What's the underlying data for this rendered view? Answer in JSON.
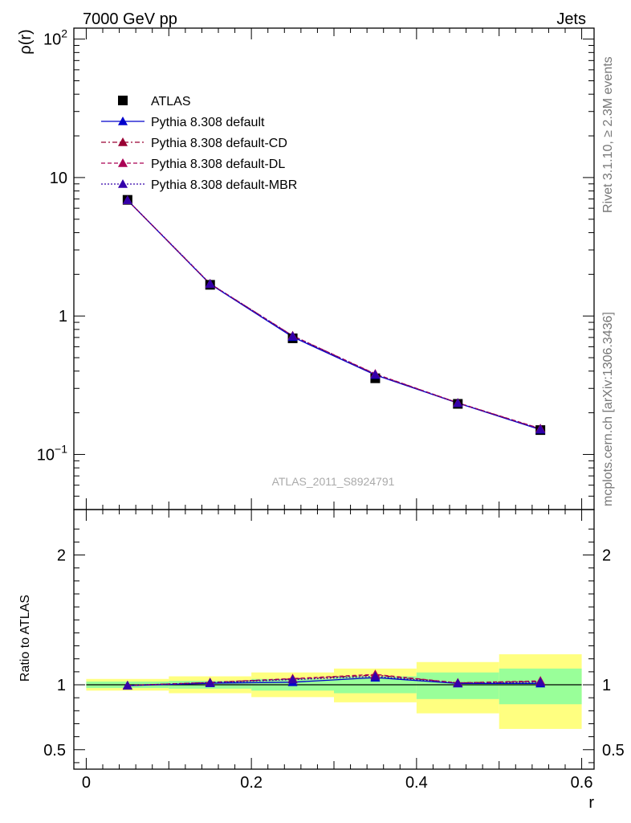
{
  "header": {
    "left": "7000 GeV pp",
    "right": "Jets"
  },
  "side_labels": {
    "rivet": "Rivet 3.1.10, ≥ 2.3M events",
    "mcplots": "mcplots.cern.ch [arXiv:1306.3436]"
  },
  "watermark": "ATLAS_2011_S8924791",
  "chart_data": [
    {
      "type": "scatter",
      "panel": "main",
      "ylabel": "ρ(r)",
      "xlabel": "",
      "yscale": "log",
      "xlim": [
        -0.015,
        0.615
      ],
      "ylim": [
        0.04,
        120
      ],
      "y_ticks": [
        {
          "value": 0.1,
          "base": "10",
          "exp": "−1"
        },
        {
          "value": 1,
          "base": "1",
          "exp": ""
        },
        {
          "value": 10,
          "base": "10",
          "exp": ""
        },
        {
          "value": 100,
          "base": "10",
          "exp": "2"
        }
      ],
      "legend_position": "top-left",
      "x": [
        0.05,
        0.15,
        0.25,
        0.35,
        0.45,
        0.55
      ],
      "series": [
        {
          "name": "ATLAS",
          "style": "data",
          "color": "#000000",
          "values": [
            6.9,
            1.68,
            0.69,
            0.355,
            0.232,
            0.15
          ]
        },
        {
          "name": "Pythia 8.308 default",
          "style": "solid",
          "color": "#0000cc",
          "values": [
            6.85,
            1.7,
            0.705,
            0.375,
            0.235,
            0.151
          ]
        },
        {
          "name": "Pythia 8.308 default-CD",
          "style": "dashdot",
          "color": "#990033",
          "values": [
            6.86,
            1.71,
            0.72,
            0.38,
            0.236,
            0.153
          ]
        },
        {
          "name": "Pythia 8.308 default-DL",
          "style": "dashed",
          "color": "#aa0055",
          "values": [
            6.86,
            1.71,
            0.72,
            0.382,
            0.236,
            0.154
          ]
        },
        {
          "name": "Pythia 8.308 default-MBR",
          "style": "dotted",
          "color": "#3300aa",
          "values": [
            6.86,
            1.71,
            0.715,
            0.378,
            0.235,
            0.152
          ]
        }
      ]
    },
    {
      "type": "scatter",
      "panel": "ratio",
      "ylabel": "Ratio to ATLAS",
      "xlabel": "r",
      "xlim": [
        -0.015,
        0.615
      ],
      "ylim": [
        0.35,
        2.35
      ],
      "x_ticks": [
        "0",
        "0.2",
        "0.4",
        "0.6"
      ],
      "x_tick_values": [
        0,
        0.2,
        0.4,
        0.6
      ],
      "y_ticks": [
        "0.5",
        "1",
        "2"
      ],
      "y_tick_values": [
        0.5,
        1,
        2
      ],
      "bins": [
        {
          "lo": 0.0,
          "hi": 0.1,
          "inner": [
            0.975,
            1.025
          ],
          "outer": [
            0.955,
            1.045
          ]
        },
        {
          "lo": 0.1,
          "hi": 0.2,
          "inner": [
            0.97,
            1.03
          ],
          "outer": [
            0.935,
            1.065
          ]
        },
        {
          "lo": 0.2,
          "hi": 0.3,
          "inner": [
            0.955,
            1.045
          ],
          "outer": [
            0.905,
            1.095
          ]
        },
        {
          "lo": 0.3,
          "hi": 0.4,
          "inner": [
            0.935,
            1.065
          ],
          "outer": [
            0.865,
            1.125
          ]
        },
        {
          "lo": 0.4,
          "hi": 0.5,
          "inner": [
            0.89,
            1.095
          ],
          "outer": [
            0.78,
            1.175
          ]
        },
        {
          "lo": 0.5,
          "hi": 0.6,
          "inner": [
            0.85,
            1.125
          ],
          "outer": [
            0.66,
            1.235
          ]
        }
      ],
      "x": [
        0.05,
        0.15,
        0.25,
        0.35,
        0.45,
        0.55
      ],
      "series": [
        {
          "name": "Pythia 8.308 default",
          "style": "solid",
          "color": "#0000cc",
          "values": [
            0.993,
            1.012,
            1.02,
            1.055,
            1.01,
            1.01
          ]
        },
        {
          "name": "Pythia 8.308 default-CD",
          "style": "dashdot",
          "color": "#990033",
          "values": [
            0.995,
            1.018,
            1.045,
            1.075,
            1.015,
            1.025
          ]
        },
        {
          "name": "Pythia 8.308 default-DL",
          "style": "dashed",
          "color": "#aa0055",
          "values": [
            0.995,
            1.018,
            1.048,
            1.08,
            1.015,
            1.03
          ]
        },
        {
          "name": "Pythia 8.308 default-MBR",
          "style": "dotted",
          "color": "#3300aa",
          "values": [
            0.994,
            1.016,
            1.04,
            1.065,
            1.012,
            1.02
          ]
        }
      ]
    }
  ]
}
